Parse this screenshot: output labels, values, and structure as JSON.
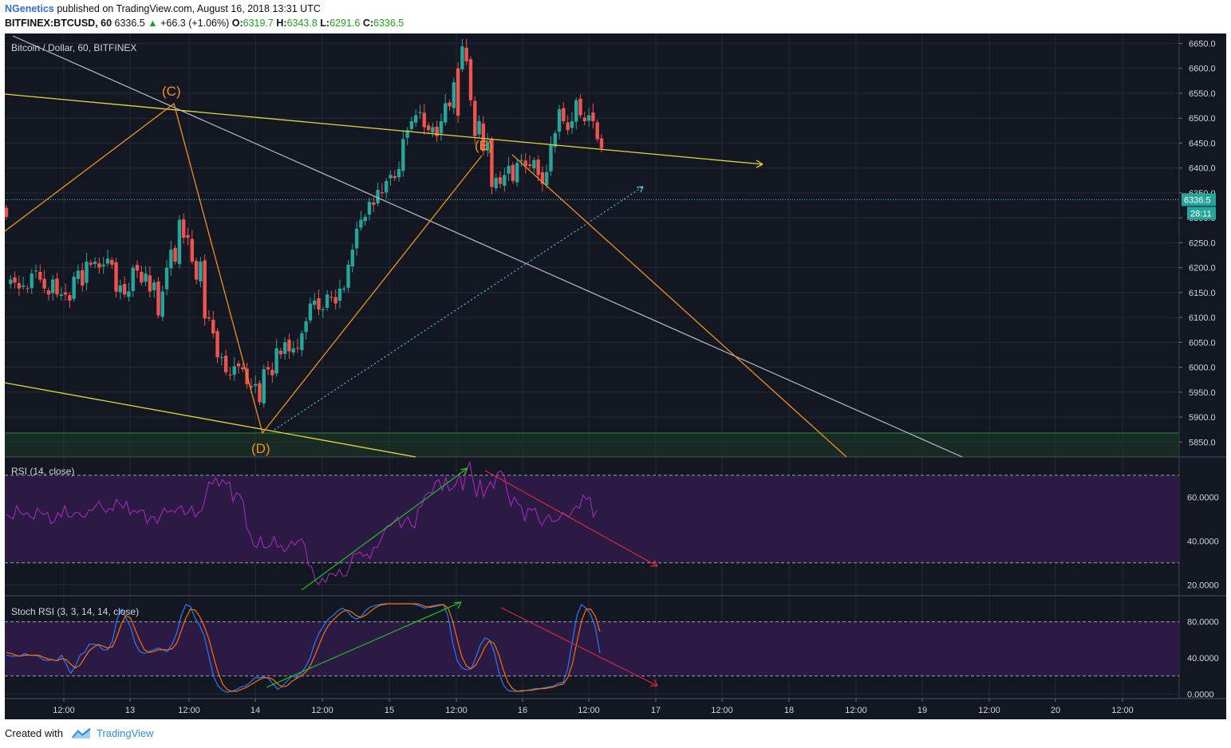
{
  "header": {
    "author": "NGenetics",
    "published_text": "published on TradingView.com, August 16, 2018 13:31 UTC",
    "symbol": "BITFINEX:BTCUSD, 60",
    "last": "6336.5",
    "change_arrow": "▲",
    "change": "+66.3 (+1.06%)",
    "o_label": "O:",
    "o": "6319.7",
    "h_label": "H:",
    "h": "6343.8",
    "l_label": "L:",
    "l": "6291.6",
    "c_label": "C:",
    "c": "6336.5"
  },
  "footer": {
    "created_with": "Created with",
    "brand": "TradingView"
  },
  "colors": {
    "background": "#131722",
    "grid": "#252a36",
    "up": "#26a69a",
    "down": "#ef5350",
    "yellow": "#e6d53a",
    "orange": "#f0901e",
    "white_line": "#b8bcc8",
    "teal": "#4fc3d8",
    "rsi": "#9c27b0",
    "stoch_k": "#2979ff",
    "stoch_d": "#ff6d00",
    "green_arrow": "#22c022",
    "red_arrow": "#e0243a"
  },
  "chart_data": [
    {
      "type": "candlestick",
      "title": "Bitcoin / Dollar, 60, BITFINEX",
      "ylim": [
        5820,
        6670
      ],
      "y_ticks": [
        "6650.0",
        "6600.0",
        "6550.0",
        "6500.0",
        "6450.0",
        "6400.0",
        "6350.0",
        "6300.0",
        "6250.0",
        "6200.0",
        "6150.0",
        "6100.0",
        "6050.0",
        "6000.0",
        "5950.0",
        "5900.0",
        "5850.0"
      ],
      "x_ticks": [
        "12:00",
        "13",
        "12:00",
        "14",
        "12:00",
        "15",
        "12:00",
        "16",
        "12:00",
        "17",
        "12:00",
        "18",
        "12:00",
        "19",
        "12:00",
        "20",
        "12:00"
      ],
      "last_price": "6336.5",
      "countdown": "28:11",
      "wave_labels": [
        "(C)",
        "(D)",
        "(E)"
      ],
      "candle_shape": [
        40,
        41,
        40,
        38,
        39,
        38,
        43,
        44,
        41,
        38,
        36,
        41,
        36,
        36,
        36,
        34,
        42,
        44,
        39,
        47,
        46,
        47,
        45,
        46,
        48,
        46,
        37,
        39,
        36,
        37,
        45,
        44,
        40,
        43,
        37,
        40,
        29,
        37,
        45,
        51,
        47,
        61,
        55,
        55,
        47,
        41,
        47,
        28,
        28,
        23,
        15,
        15,
        10,
        9,
        12,
        12,
        11,
        6,
        5,
        6,
        0,
        11,
        11,
        9,
        18,
        16,
        20,
        17,
        18,
        18,
        23,
        27,
        33,
        34,
        31,
        31,
        36,
        35,
        33,
        38,
        38,
        46,
        51,
        58,
        61,
        62,
        67,
        66,
        71,
        70,
        74,
        76,
        75,
        78,
        88,
        91,
        94,
        96,
        97,
        92,
        91,
        92,
        89,
        94,
        100,
        99,
        107,
        111,
        119,
        114,
        101,
        89,
        94,
        84,
        87,
        72,
        75,
        73,
        76,
        79,
        74,
        80,
        81,
        79,
        79,
        81,
        76,
        73,
        77,
        86,
        90,
        98,
        94,
        91,
        94,
        101,
        96,
        94,
        96,
        94,
        88,
        85
      ]
    },
    {
      "type": "line",
      "title": "RSI (14, close)",
      "ylim": [
        15,
        78
      ],
      "y_ticks": [
        "60.0000",
        "40.0000",
        "20.0000"
      ],
      "bands": [
        30,
        70
      ],
      "values": [
        52,
        51,
        50,
        56,
        53,
        52,
        53,
        51,
        50,
        55,
        53,
        52,
        53,
        48,
        49,
        53,
        51,
        56,
        51,
        51,
        53,
        53,
        51,
        51,
        54,
        54,
        56,
        58,
        55,
        53,
        55,
        54,
        59,
        57,
        55,
        58,
        52,
        54,
        53,
        54,
        54,
        48,
        51,
        51,
        48,
        52,
        55,
        53,
        54,
        53,
        55,
        56,
        52,
        53,
        56,
        51,
        53,
        54,
        60,
        67,
        66,
        69,
        65,
        68,
        66,
        67,
        58,
        62,
        61,
        58,
        46,
        43,
        38,
        37,
        42,
        37,
        37,
        38,
        42,
        37,
        38,
        35,
        37,
        40,
        38,
        40,
        41,
        38,
        29,
        28,
        22,
        20,
        23,
        21,
        25,
        25,
        24,
        27,
        24,
        24,
        28,
        34,
        34,
        35,
        33,
        34,
        32,
        37,
        37,
        40,
        44,
        47,
        47,
        49,
        51,
        46,
        49,
        51,
        47,
        46,
        55,
        56,
        61,
        62,
        62,
        67,
        68,
        63,
        69,
        63,
        64,
        66,
        71,
        63,
        72,
        76,
        67,
        60,
        68,
        60,
        64,
        67,
        64,
        71,
        72,
        70,
        62,
        56,
        60,
        57,
        56,
        49,
        55,
        54,
        55,
        50,
        47,
        50,
        52,
        49,
        49,
        50,
        53,
        52,
        51,
        54,
        56,
        55,
        61,
        59,
        60,
        51,
        54
      ]
    },
    {
      "type": "line",
      "title": "Stoch RSI (3, 3, 14, 14, close)",
      "ylim": [
        -5,
        108
      ],
      "y_ticks": [
        "80.0000",
        "40.0000",
        "0.0000"
      ],
      "bands": [
        20,
        80
      ],
      "series": [
        {
          "name": "K",
          "values": [
            43,
            42,
            42,
            42,
            45,
            43,
            43,
            42,
            38,
            37,
            38,
            37,
            43,
            33,
            23,
            31,
            43,
            46,
            55,
            55,
            54,
            49,
            49,
            58,
            82,
            94,
            84,
            74,
            56,
            47,
            45,
            47,
            49,
            51,
            49,
            47,
            55,
            67,
            87,
            99,
            97,
            84,
            76,
            64,
            42,
            20,
            9,
            4,
            2,
            3,
            5,
            8,
            9,
            13,
            18,
            18,
            19,
            17,
            11,
            5,
            9,
            14,
            20,
            18,
            23,
            30,
            40,
            56,
            68,
            76,
            83,
            87,
            92,
            95,
            92,
            86,
            83,
            85,
            92,
            96,
            98,
            99,
            100,
            100,
            100,
            100,
            100,
            100,
            100,
            99,
            97,
            95,
            97,
            98,
            99,
            99,
            86,
            57,
            37,
            29,
            27,
            28,
            40,
            54,
            62,
            60,
            47,
            25,
            10,
            4,
            3,
            3,
            4,
            4,
            5,
            6,
            6,
            7,
            8,
            9,
            12,
            13,
            28,
            58,
            87,
            99,
            95,
            88,
            74,
            45
          ]
        },
        {
          "name": "D",
          "values": [
            46,
            45,
            43,
            42,
            43,
            43,
            43,
            43,
            41,
            39,
            38,
            37,
            39,
            38,
            33,
            29,
            32,
            40,
            48,
            52,
            55,
            53,
            51,
            52,
            63,
            78,
            87,
            84,
            71,
            59,
            49,
            46,
            47,
            49,
            49,
            49,
            50,
            56,
            70,
            84,
            94,
            93,
            86,
            75,
            61,
            42,
            24,
            11,
            5,
            3,
            3,
            5,
            7,
            10,
            13,
            16,
            18,
            18,
            16,
            11,
            8,
            9,
            14,
            17,
            20,
            24,
            31,
            42,
            55,
            67,
            76,
            82,
            87,
            91,
            93,
            91,
            87,
            85,
            87,
            91,
            95,
            98,
            99,
            100,
            100,
            100,
            100,
            100,
            100,
            100,
            99,
            97,
            96,
            97,
            98,
            99,
            95,
            81,
            60,
            41,
            31,
            28,
            32,
            41,
            52,
            59,
            56,
            44,
            27,
            13,
            6,
            3,
            3,
            4,
            4,
            5,
            6,
            6,
            7,
            8,
            10,
            11,
            18,
            33,
            58,
            81,
            94,
            94,
            86,
            69
          ]
        }
      ]
    }
  ]
}
